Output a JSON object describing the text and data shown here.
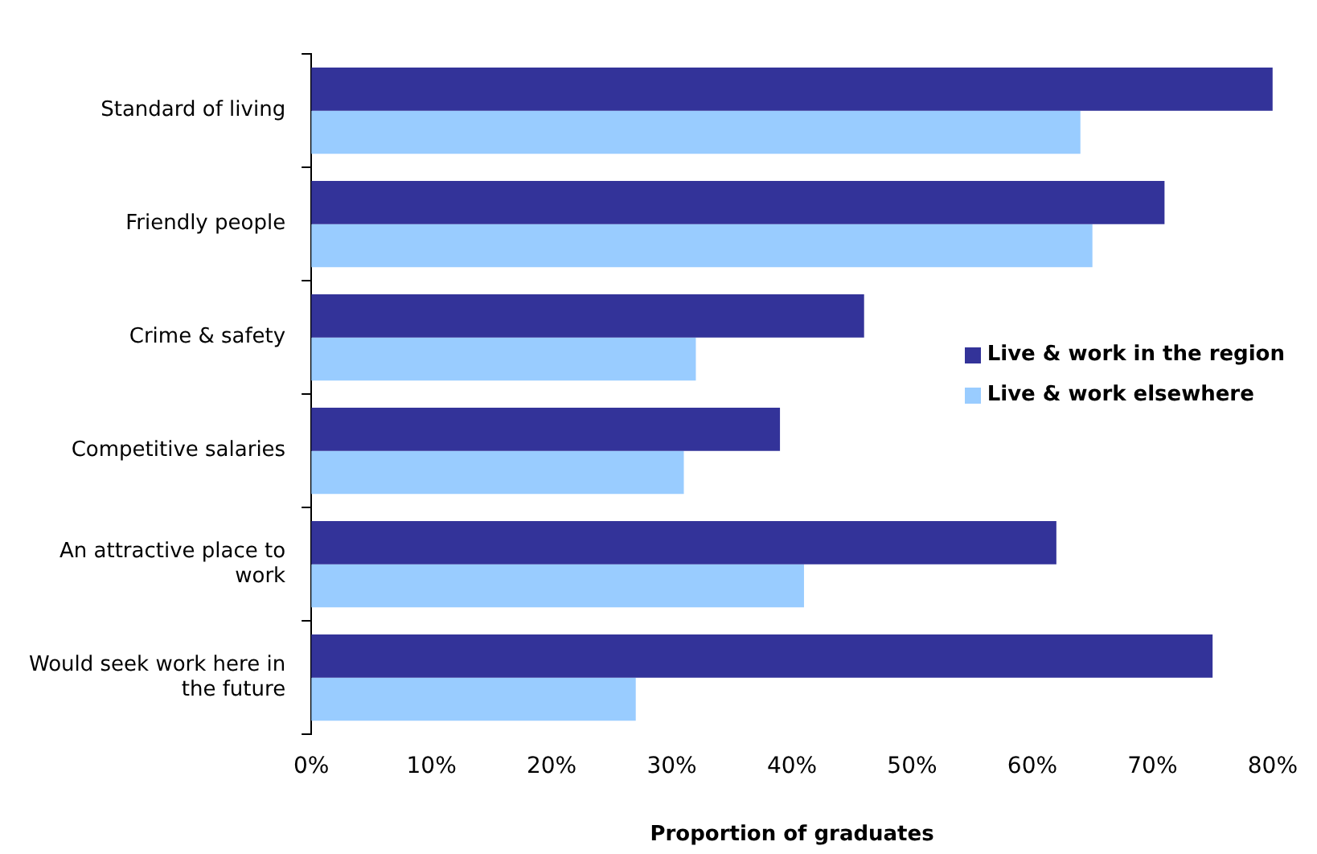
{
  "chart_data": {
    "type": "bar",
    "orientation": "horizontal",
    "xlabel": "Proportion of graduates",
    "categories": [
      "Standard of living",
      "Friendly people",
      "Crime & safety",
      "Competitive salaries",
      "An attractive place to work",
      "Would seek work here in the future"
    ],
    "series": [
      {
        "name": "Live & work in the region",
        "color": "#333399",
        "values": [
          80,
          71,
          46,
          39,
          62,
          75
        ]
      },
      {
        "name": "Live & work elsewhere",
        "color": "#99ccff",
        "values": [
          64,
          65,
          32,
          31,
          41,
          27
        ]
      }
    ],
    "xlim": [
      0,
      80
    ],
    "xticks": [
      {
        "value": 0,
        "label": "0%"
      },
      {
        "value": 10,
        "label": "10%"
      },
      {
        "value": 20,
        "label": "20%"
      },
      {
        "value": 30,
        "label": "30%"
      },
      {
        "value": 40,
        "label": "40%"
      },
      {
        "value": 50,
        "label": "50%"
      },
      {
        "value": 60,
        "label": "60%"
      },
      {
        "value": 70,
        "label": "70%"
      },
      {
        "value": 80,
        "label": "80%"
      }
    ],
    "grid": false,
    "legend": "right"
  }
}
